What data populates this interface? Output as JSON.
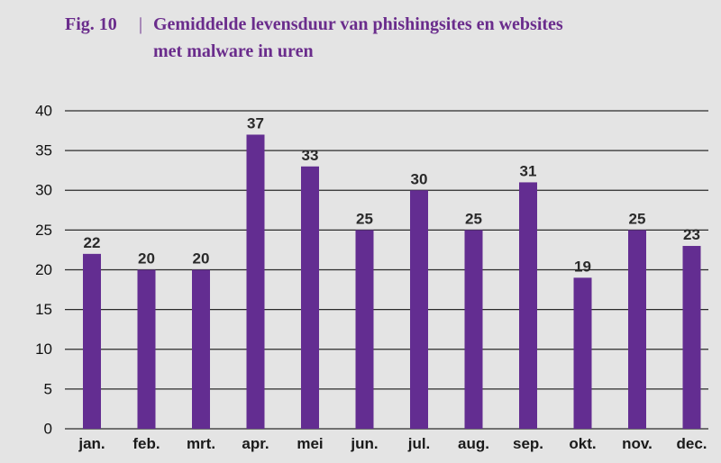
{
  "figure": {
    "label": "Fig. 10",
    "separator": "|",
    "title_line1": "Gemiddelde levensduur van phishingsites en websites",
    "title_line2": "met malware in uren"
  },
  "chart_data": {
    "type": "bar",
    "title": "Gemiddelde levensduur van phishingsites en websites met malware in uren",
    "xlabel": "",
    "ylabel": "",
    "categories": [
      "jan.",
      "feb.",
      "mrt.",
      "apr.",
      "mei",
      "jun.",
      "jul.",
      "aug.",
      "sep.",
      "okt.",
      "nov.",
      "dec."
    ],
    "values": [
      22,
      20,
      20,
      37,
      33,
      25,
      30,
      25,
      31,
      19,
      25,
      23
    ],
    "ylim": [
      0,
      40
    ],
    "yticks": [
      0,
      5,
      10,
      15,
      20,
      25,
      30,
      35,
      40
    ],
    "grid": true,
    "legend": "none",
    "bar_color": "#632d91",
    "gridline_color": "#2b2b2b"
  }
}
